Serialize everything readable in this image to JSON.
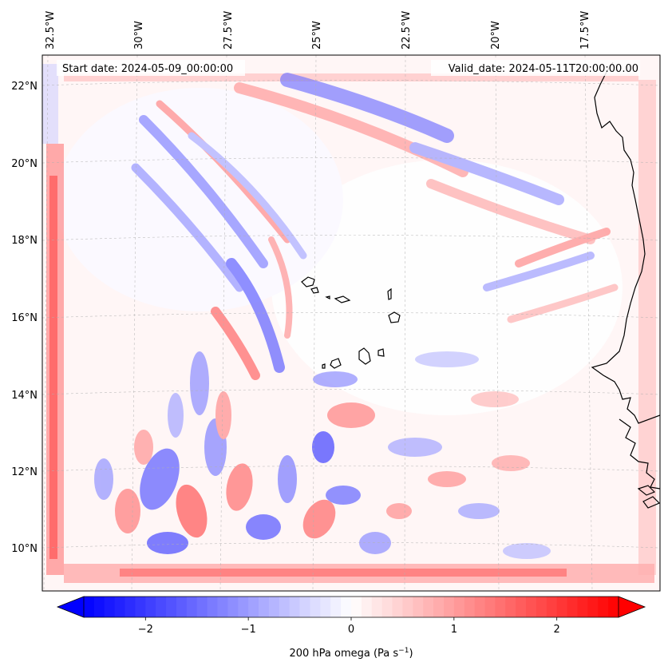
{
  "map": {
    "start_date_label": "Start date: 2024-05-09_00:00:00",
    "valid_date_label": "Valid_date: 2024-05-11T20:00:00.00",
    "lon_labels": [
      "32.5°W",
      "30°W",
      "27.5°W",
      "25°W",
      "22.5°W",
      "20°W",
      "17.5°W"
    ],
    "lat_labels": [
      "22°N",
      "20°N",
      "18°N",
      "16°N",
      "14°N",
      "12°N",
      "10°N"
    ],
    "field": "200 hPa omega",
    "colormap": "bwr",
    "colors": {
      "negative": "#0000ff",
      "zero": "#ffffff",
      "positive": "#ff0000",
      "coast": "#000000",
      "grid": "#b0b0b0"
    }
  },
  "colorbar": {
    "label_main": "200 hPa omega (Pa s",
    "label_exp": "−1",
    "label_close": ")",
    "ticks": [
      "−2",
      "−1",
      "0",
      "1",
      "2"
    ],
    "tick_values": [
      -2,
      -1,
      0,
      1,
      2
    ],
    "vmin": -2.6,
    "vmax": 2.6
  },
  "chart_data": {
    "type": "heatmap",
    "title": "",
    "variable": "200 hPa omega",
    "units": "Pa s-1",
    "lon_range": [
      -33.0,
      -16.0
    ],
    "lat_range": [
      9.0,
      22.6
    ],
    "value_range": [
      -2.6,
      2.6
    ]
  }
}
